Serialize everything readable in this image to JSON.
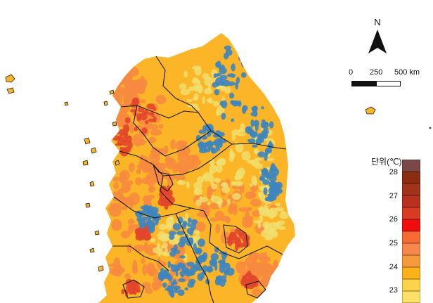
{
  "north_arrow": {
    "label": "N"
  },
  "scale_bar": {
    "ticks": [
      "0",
      "250",
      "500 km"
    ]
  },
  "legend": {
    "title": "단위(℃)",
    "ticks": [
      "28",
      "27",
      "26",
      "25",
      "24",
      "23"
    ],
    "colors": [
      "#7b4848",
      "#8c2c10",
      "#a2321a",
      "#b8301e",
      "#d83a22",
      "#f20d0d",
      "#f66b34",
      "#f8874d",
      "#f79a3d",
      "#fbb117",
      "#fed34c",
      "#fde068"
    ]
  },
  "map_colors": {
    "hot": "#e2462a",
    "warm": "#f7893f",
    "mild": "#fbb526",
    "cool": "#f0e070",
    "cold": "#3d85c0",
    "border": "#1a1a1a"
  }
}
